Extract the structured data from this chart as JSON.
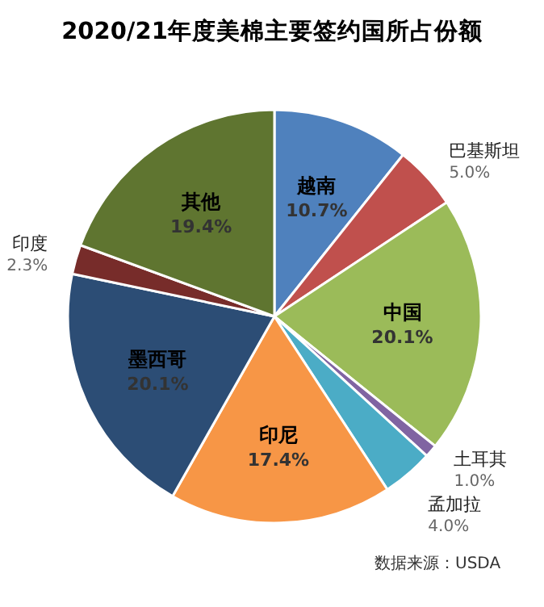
{
  "chart_data": {
    "type": "pie",
    "title": "2020/21年度美棉主要签约国所占份额",
    "categories": [
      "越南",
      "巴基斯坦",
      "中国",
      "土耳其",
      "孟加拉",
      "印尼",
      "墨西哥",
      "印度",
      "其他"
    ],
    "values": [
      10.7,
      5.0,
      20.1,
      1.0,
      4.0,
      17.4,
      20.1,
      2.3,
      19.4
    ],
    "value_labels": [
      "10.7%",
      "5.0%",
      "20.1%",
      "1.0%",
      "4.0%",
      "17.4%",
      "20.1%",
      "2.3%",
      "19.4%"
    ],
    "colors": [
      "#4f81bd",
      "#c0504d",
      "#9bbb59",
      "#8064a2",
      "#4bacc6",
      "#f79646",
      "#2c4d75",
      "#772c2a",
      "#5f7530"
    ],
    "annotations": [
      "数据来源：USDA"
    ]
  }
}
